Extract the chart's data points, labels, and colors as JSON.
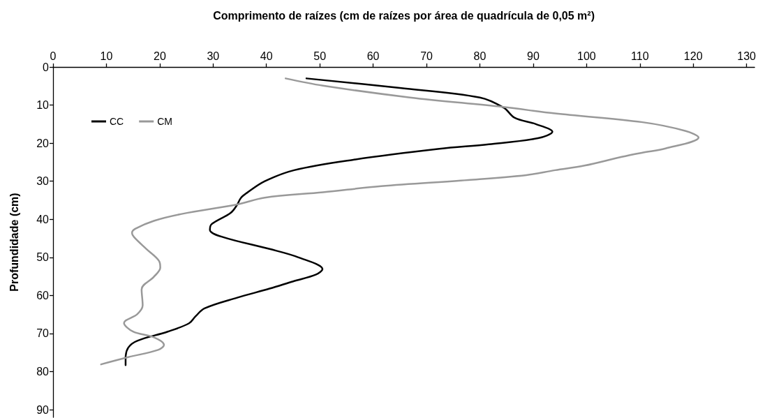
{
  "chart_data": {
    "type": "line",
    "xlabel": "Comprimento de raízes (cm de raízes por área de quadrícula de 0,05 m²)",
    "ylabel": "Profundidade (cm)",
    "xlim": [
      0,
      131.5
    ],
    "xticks": [
      0,
      10,
      20,
      30,
      40,
      50,
      60,
      70,
      80,
      90,
      100,
      110,
      120,
      130
    ],
    "ylim": [
      92,
      0
    ],
    "yticks": [
      0,
      10,
      20,
      30,
      40,
      50,
      60,
      70,
      80,
      90
    ],
    "grid": false,
    "legend": "top left",
    "marker": "none",
    "line_style": "solid",
    "series": [
      {
        "name": "CC",
        "color": "#000000",
        "x": [
          47.5,
          65,
          80,
          84.5,
          86.5,
          90.5,
          93.6,
          90.9,
          81.7,
          72.4,
          56.1,
          45.2,
          39.7,
          36.3,
          35.2,
          34.5,
          33.3,
          29.7,
          29.4,
          31.9,
          40.6,
          46,
          50.5,
          49.3,
          45,
          40.6,
          34.5,
          28.4,
          26.7,
          25.5,
          21.5,
          15.8,
          14.1,
          13.6,
          13.6
        ],
        "values": [
          3,
          5.5,
          8,
          10.7,
          13.3,
          15,
          17,
          18.7,
          20.3,
          21.5,
          24.4,
          27.1,
          30,
          33.1,
          34.4,
          36.2,
          38.3,
          41.3,
          42.8,
          44.7,
          47.8,
          50,
          53.1,
          54.5,
          56.3,
          58.2,
          60.6,
          63.4,
          65.5,
          67.3,
          69.5,
          71.9,
          73.7,
          76.5,
          78.3
        ]
      },
      {
        "name": "CM",
        "color": "#999999",
        "x": [
          43.6,
          50.6,
          66.9,
          84.3,
          94.1,
          110.5,
          118.6,
          121,
          114.8,
          110.5,
          106.6,
          99.6,
          94.1,
          88.7,
          77.8,
          61.5,
          50.6,
          39.7,
          34.5,
          24.1,
          18.9,
          15.4,
          14.8,
          15.2,
          17.5,
          19.9,
          20.1,
          18.9,
          16.6,
          16.8,
          15.8,
          13.3,
          15,
          18.9,
          20.8,
          19.7,
          14.1,
          9
        ],
        "values": [
          3,
          4.9,
          8,
          10.5,
          12.2,
          14.5,
          16.8,
          18.5,
          21.4,
          22.5,
          23.6,
          25.9,
          27.1,
          28.4,
          29.7,
          31.3,
          32.9,
          34.3,
          36.1,
          38.6,
          40.4,
          42.5,
          43.6,
          44.7,
          47.8,
          51,
          52.7,
          55.1,
          58.4,
          62.6,
          64.9,
          67.2,
          69.5,
          71,
          73,
          74.3,
          76.2,
          78.1
        ]
      }
    ]
  }
}
